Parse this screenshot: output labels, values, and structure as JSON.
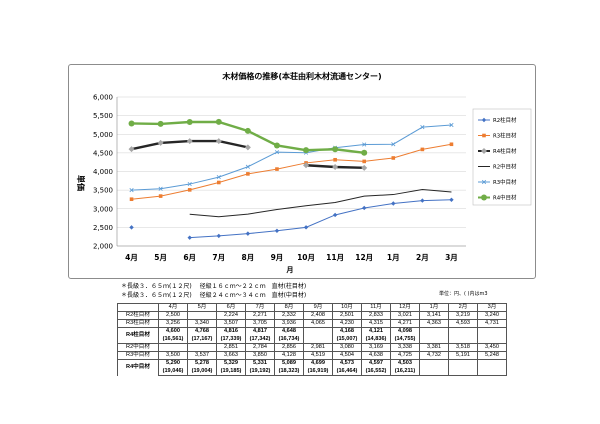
{
  "chart_data": {
    "type": "line",
    "title": "木材価格の推移(本荘由利木材流通センター)",
    "xlabel": "月",
    "ylabel": "単価",
    "ylim": [
      2000,
      6000
    ],
    "yticks": [
      "2,000",
      "2,500",
      "3,000",
      "3,500",
      "4,000",
      "4,500",
      "5,000",
      "5,500",
      "6,000"
    ],
    "categories": [
      "4月",
      "5月",
      "6月",
      "7月",
      "8月",
      "9月",
      "10月",
      "11月",
      "12月",
      "1月",
      "2月",
      "3月"
    ],
    "grid": true,
    "legend_position": "right",
    "series": [
      {
        "name": "R2柱目材",
        "color": "#4472c4",
        "marker": "diamond",
        "width": 1,
        "values": [
          2500,
          null,
          2224,
          2271,
          2332,
          2408,
          2501,
          2833,
          3021,
          3141,
          3219,
          3240
        ]
      },
      {
        "name": "R3柱目材",
        "color": "#ed7d31",
        "marker": "square",
        "width": 1,
        "values": [
          3256,
          3340,
          3507,
          3705,
          3936,
          4065,
          4230,
          4315,
          4271,
          4363,
          4593,
          4731
        ]
      },
      {
        "name": "R4柱目材",
        "color": "#262626",
        "marker": "diamond-gray",
        "width": 2.4,
        "values": [
          4600,
          4768,
          4816,
          4817,
          4648,
          null,
          4168,
          4121,
          4098,
          null,
          null,
          null
        ]
      },
      {
        "name": "R2中目材",
        "color": "#262626",
        "marker": "none",
        "width": 1,
        "values": [
          null,
          null,
          2851,
          2784,
          2856,
          2981,
          3080,
          3169,
          3338,
          3381,
          3518,
          3450
        ]
      },
      {
        "name": "R3中目材",
        "color": "#5b9bd5",
        "marker": "x",
        "width": 1,
        "values": [
          3500,
          3537,
          3663,
          3850,
          4128,
          4519,
          4504,
          4638,
          4725,
          4732,
          5191,
          5248
        ]
      },
      {
        "name": "R4中目材",
        "color": "#70ad47",
        "marker": "circle",
        "width": 2.4,
        "values": [
          5290,
          5278,
          5329,
          5331,
          5089,
          4699,
          4573,
          4597,
          4503,
          null,
          null,
          null
        ]
      }
    ]
  },
  "notes": [
    "＊長級３．６５ｍ(１２尺)　 径級１６ｃｍ～２２ｃｍ　直材(柱目材)",
    "＊長級３．６５ｍ(１２尺)　 径級２４ｃｍ～３４ｃｍ　直材(中目材)"
  ],
  "unit_note": "単位：円、( )内はm3",
  "table": {
    "headers": [
      "4月",
      "5月",
      "6月",
      "7月",
      "8月",
      "9月",
      "10月",
      "11月",
      "12月",
      "1月",
      "2月",
      "3月"
    ],
    "rows": [
      {
        "label": "R2柱目材",
        "values": [
          "2,500",
          "",
          "2,224",
          "2,271",
          "2,332",
          "2,408",
          "2,501",
          "2,833",
          "3,021",
          "3,141",
          "3,219",
          "3,240"
        ]
      },
      {
        "label": "R3柱目材",
        "values": [
          "3,256",
          "3,340",
          "3,507",
          "3,705",
          "3,936",
          "4,065",
          "4,230",
          "4,315",
          "4,271",
          "4,363",
          "4,593",
          "4,731"
        ]
      },
      {
        "label": "R4柱目材",
        "values": [
          "4,600",
          "4,768",
          "4,816",
          "4,817",
          "4,648",
          "",
          "4,168",
          "4,121",
          "4,098",
          "",
          "",
          ""
        ],
        "volumes": [
          "(16,561)",
          "(17,167)",
          "(17,339)",
          "(17,342)",
          "(16,734)",
          "",
          "(15,007)",
          "(14,836)",
          "(14,755)",
          "",
          "",
          ""
        ]
      },
      {
        "label": "R2中目材",
        "values": [
          "",
          "",
          "2,851",
          "2,784",
          "2,856",
          "2,981",
          "3,080",
          "3,169",
          "3,338",
          "3,381",
          "3,518",
          "3,450"
        ]
      },
      {
        "label": "R3中目材",
        "values": [
          "3,500",
          "3,537",
          "3,663",
          "3,850",
          "4,128",
          "4,519",
          "4,504",
          "4,638",
          "4,725",
          "4,732",
          "5,191",
          "5,248"
        ]
      },
      {
        "label": "R4中目材",
        "values": [
          "5,290",
          "5,278",
          "5,329",
          "5,331",
          "5,089",
          "4,699",
          "4,573",
          "4,597",
          "4,503",
          "",
          "",
          ""
        ],
        "volumes": [
          "(19,046)",
          "(19,004)",
          "(19,185)",
          "(19,192)",
          "(18,323)",
          "(16,919)",
          "(16,464)",
          "(16,552)",
          "(16,211)",
          "",
          "",
          ""
        ]
      }
    ]
  }
}
